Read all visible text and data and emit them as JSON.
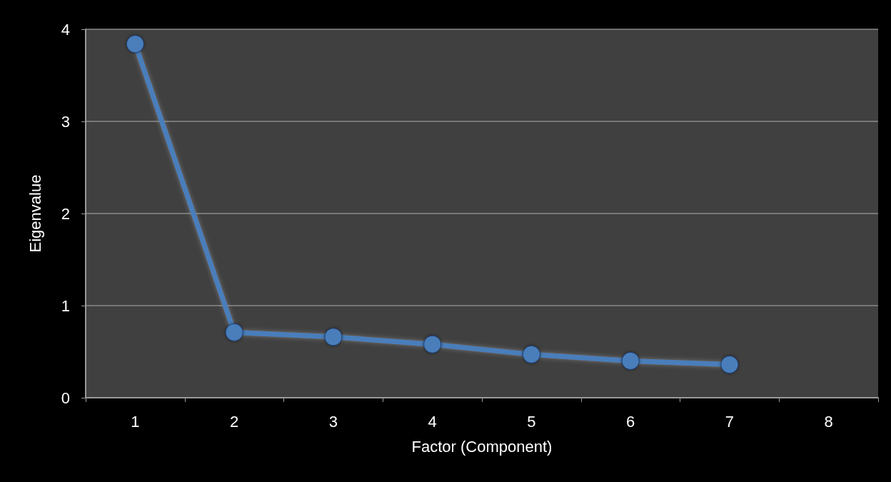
{
  "chart_data": {
    "type": "line",
    "xlabel": "Factor (Component)",
    "ylabel": "Eigenvalue",
    "categories": [
      "1",
      "2",
      "3",
      "4",
      "5",
      "6",
      "7",
      "8"
    ],
    "series": [
      {
        "color": "#4a7ebb",
        "values": [
          3.84,
          0.71,
          0.66,
          0.58,
          0.47,
          0.4,
          0.36,
          null
        ]
      }
    ],
    "ylim": [
      0,
      4
    ],
    "yticks": [
      0,
      1,
      2,
      3,
      4
    ],
    "grid": "y",
    "marker": "circle",
    "line_style": "solid"
  }
}
